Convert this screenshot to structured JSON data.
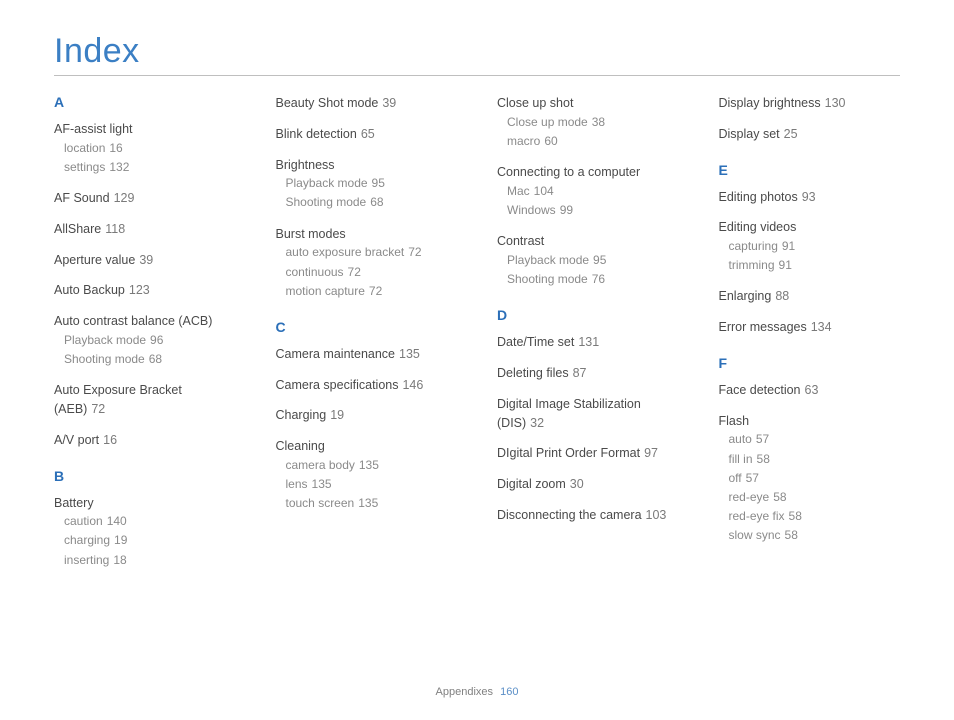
{
  "title": "Index",
  "footer": {
    "section": "Appendixes",
    "page": "160"
  },
  "columns": [
    {
      "blocks": [
        {
          "type": "letter",
          "text": "A"
        },
        {
          "type": "entry",
          "label": "AF-assist light",
          "subs": [
            {
              "label": "location",
              "page": "16"
            },
            {
              "label": "settings",
              "page": "132"
            }
          ]
        },
        {
          "type": "entry",
          "label": "AF Sound",
          "page": "129"
        },
        {
          "type": "entry",
          "label": "AllShare",
          "page": "118"
        },
        {
          "type": "entry",
          "label": "Aperture value",
          "page": "39"
        },
        {
          "type": "entry",
          "label": "Auto Backup",
          "page": "123"
        },
        {
          "type": "entry",
          "label": "Auto contrast balance (ACB)",
          "subs": [
            {
              "label": "Playback mode",
              "page": "96"
            },
            {
              "label": "Shooting mode",
              "page": "68"
            }
          ]
        },
        {
          "type": "entry",
          "label": "Auto Exposure Bracket (AEB)",
          "page": "72"
        },
        {
          "type": "entry",
          "label": "A/V port",
          "page": "16"
        },
        {
          "type": "letter",
          "text": "B"
        },
        {
          "type": "entry",
          "label": "Battery",
          "subs": [
            {
              "label": "caution",
              "page": "140"
            },
            {
              "label": "charging",
              "page": "19"
            },
            {
              "label": "inserting",
              "page": "18"
            }
          ]
        }
      ]
    },
    {
      "blocks": [
        {
          "type": "entry",
          "label": "Beauty Shot mode",
          "page": "39"
        },
        {
          "type": "entry",
          "label": "Blink detection",
          "page": "65"
        },
        {
          "type": "entry",
          "label": "Brightness",
          "subs": [
            {
              "label": "Playback mode",
              "page": "95"
            },
            {
              "label": "Shooting mode",
              "page": "68"
            }
          ]
        },
        {
          "type": "entry",
          "label": "Burst modes",
          "subs": [
            {
              "label": "auto exposure bracket",
              "page": "72"
            },
            {
              "label": "continuous",
              "page": "72"
            },
            {
              "label": "motion capture",
              "page": "72"
            }
          ]
        },
        {
          "type": "letter",
          "text": "C"
        },
        {
          "type": "entry",
          "label": "Camera maintenance",
          "page": "135"
        },
        {
          "type": "entry",
          "label": "Camera specifications",
          "page": "146"
        },
        {
          "type": "entry",
          "label": "Charging",
          "page": "19"
        },
        {
          "type": "entry",
          "label": "Cleaning",
          "subs": [
            {
              "label": "camera body",
              "page": "135"
            },
            {
              "label": "lens",
              "page": "135"
            },
            {
              "label": "touch screen",
              "page": "135"
            }
          ]
        }
      ]
    },
    {
      "blocks": [
        {
          "type": "entry",
          "label": "Close up shot",
          "subs": [
            {
              "label": "Close up mode",
              "page": "38"
            },
            {
              "label": "macro",
              "page": "60"
            }
          ]
        },
        {
          "type": "entry",
          "label": "Connecting to a computer",
          "subs": [
            {
              "label": "Mac",
              "page": "104"
            },
            {
              "label": "Windows",
              "page": "99"
            }
          ]
        },
        {
          "type": "entry",
          "label": "Contrast",
          "subs": [
            {
              "label": "Playback mode",
              "page": "95"
            },
            {
              "label": "Shooting mode",
              "page": "76"
            }
          ]
        },
        {
          "type": "letter",
          "text": "D"
        },
        {
          "type": "entry",
          "label": "Date/Time set",
          "page": "131"
        },
        {
          "type": "entry",
          "label": "Deleting files",
          "page": "87"
        },
        {
          "type": "entry",
          "label": "Digital Image Stabilization (DIS)",
          "page": "32"
        },
        {
          "type": "entry",
          "label": "DIgital Print Order Format",
          "page": "97"
        },
        {
          "type": "entry",
          "label": "Digital zoom",
          "page": "30"
        },
        {
          "type": "entry",
          "label": "Disconnecting the camera",
          "page": "103"
        }
      ]
    },
    {
      "blocks": [
        {
          "type": "entry",
          "label": "Display brightness",
          "page": "130"
        },
        {
          "type": "entry",
          "label": "Display set",
          "page": "25"
        },
        {
          "type": "letter",
          "text": "E"
        },
        {
          "type": "entry",
          "label": "Editing photos",
          "page": "93"
        },
        {
          "type": "entry",
          "label": "Editing videos",
          "subs": [
            {
              "label": "capturing",
              "page": "91"
            },
            {
              "label": "trimming",
              "page": "91"
            }
          ]
        },
        {
          "type": "entry",
          "label": "Enlarging",
          "page": "88"
        },
        {
          "type": "entry",
          "label": "Error messages",
          "page": "134"
        },
        {
          "type": "letter",
          "text": "F"
        },
        {
          "type": "entry",
          "label": "Face detection",
          "page": "63"
        },
        {
          "type": "entry",
          "label": "Flash",
          "subs": [
            {
              "label": "auto",
              "page": "57"
            },
            {
              "label": "fill in",
              "page": "58"
            },
            {
              "label": "off",
              "page": "57"
            },
            {
              "label": "red-eye",
              "page": "58"
            },
            {
              "label": "red-eye fix",
              "page": "58"
            },
            {
              "label": "slow sync",
              "page": "58"
            }
          ]
        }
      ]
    }
  ]
}
